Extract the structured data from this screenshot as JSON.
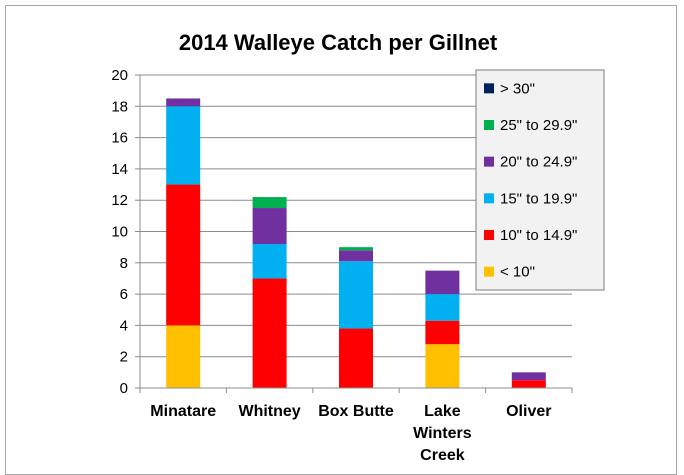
{
  "chart_data": {
    "type": "bar",
    "stacked": true,
    "title": "2014 Walleye  Catch per Gillnet",
    "xlabel": "",
    "ylabel": "",
    "ylim": [
      0,
      20
    ],
    "yticks": [
      0,
      2,
      4,
      6,
      8,
      10,
      12,
      14,
      16,
      18,
      20
    ],
    "grid": true,
    "legend_position": "top-right",
    "categories": [
      "Minatare",
      "Whitney",
      "Box Butte",
      "Lake Winters Creek",
      "Oliver"
    ],
    "category_lines": [
      [
        "Minatare"
      ],
      [
        "Whitney"
      ],
      [
        "Box Butte"
      ],
      [
        "Lake",
        "Winters",
        "Creek"
      ],
      [
        "Oliver"
      ]
    ],
    "series": [
      {
        "name": "< 10\"",
        "color": "#ffc000",
        "values": [
          4.0,
          0,
          0,
          2.8,
          0
        ]
      },
      {
        "name": "10\" to 14.9\"",
        "color": "#ff0000",
        "values": [
          9.0,
          7.0,
          3.8,
          1.5,
          0.5
        ]
      },
      {
        "name": "15\" to 19.9\"",
        "color": "#00b0f0",
        "values": [
          5.0,
          2.2,
          4.3,
          1.7,
          0
        ]
      },
      {
        "name": "20\" to 24.9\"",
        "color": "#7030a0",
        "values": [
          0.5,
          2.3,
          0.7,
          1.5,
          0.5
        ]
      },
      {
        "name": "25\" to 29.9\"",
        "color": "#00b050",
        "values": [
          0,
          0.7,
          0.2,
          0,
          0
        ]
      },
      {
        "name": "> 30\"",
        "color": "#002060",
        "values": [
          0,
          0,
          0,
          0,
          0
        ]
      }
    ],
    "legend_order": [
      "> 30\"",
      "25\" to 29.9\"",
      "20\" to 24.9\"",
      "15\" to 19.9\"",
      "10\" to 14.9\"",
      "< 10\""
    ]
  }
}
